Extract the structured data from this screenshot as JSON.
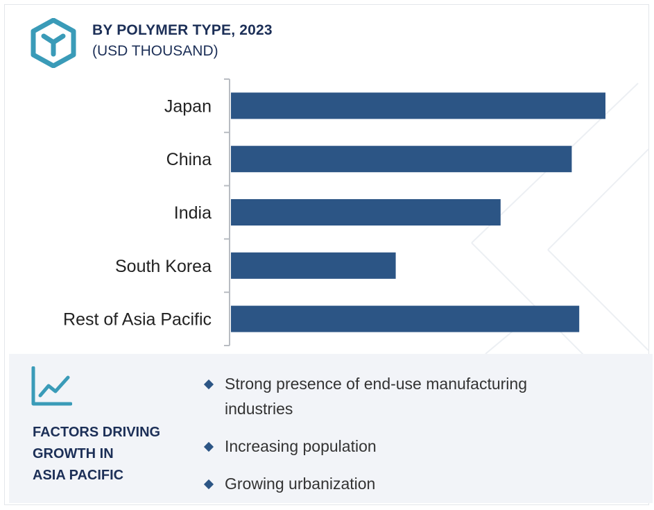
{
  "header": {
    "title": "BY POLYMER TYPE, 2023",
    "subtitle": "(USD THOUSAND)",
    "icon": "hexagon-y-logo-icon"
  },
  "colors": {
    "bar": "#2c5585",
    "accent": "#3a9bb8",
    "heading": "#1c2f57",
    "panel_bg": "#f2f4f8"
  },
  "chart_data": {
    "type": "bar",
    "orientation": "horizontal",
    "title": "BY POLYMER TYPE, 2023",
    "subtitle": "(USD THOUSAND)",
    "categories": [
      "Japan",
      "China",
      "India",
      "South Korea",
      "Rest of Asia Pacific"
    ],
    "values": [
      100,
      91,
      72,
      44,
      93
    ],
    "value_axis": "unlabeled (relative magnitudes)",
    "xlim": [
      0,
      100
    ],
    "grid": false,
    "legend": "none"
  },
  "factors": {
    "icon": "line-chart-growth-icon",
    "heading_lines": [
      "FACTORS DRIVING",
      "GROWTH IN",
      "ASIA PACIFIC"
    ],
    "items": [
      "Strong presence of end-use manufacturing industries",
      "Increasing population",
      "Growing urbanization"
    ]
  }
}
